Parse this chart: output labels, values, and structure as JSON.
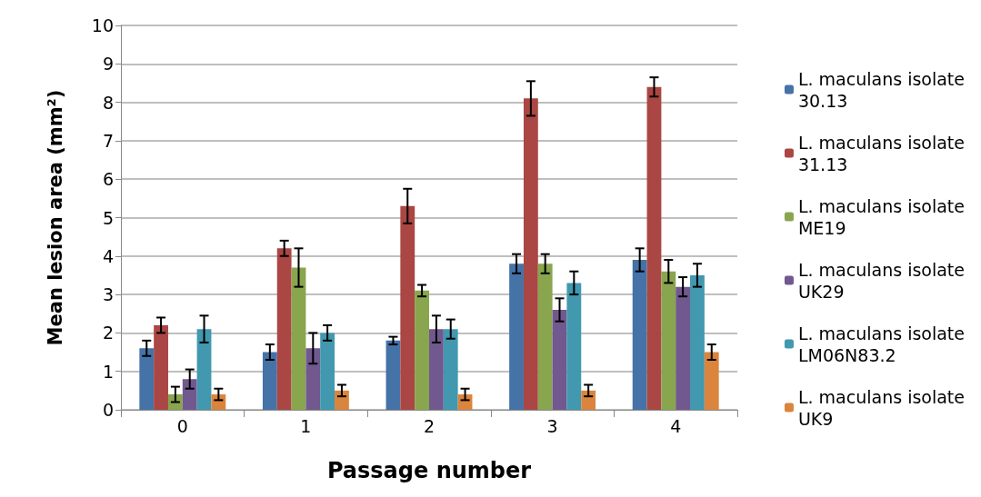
{
  "chart_data": {
    "type": "bar",
    "xlabel": "Passage number",
    "ylabel": "Mean lesion area (mm²)",
    "categories": [
      "0",
      "1",
      "2",
      "3",
      "4"
    ],
    "ylim": [
      0,
      10
    ],
    "yticks": [
      0,
      1,
      2,
      3,
      4,
      5,
      6,
      7,
      8,
      9,
      10
    ],
    "grid": "y",
    "legend": "right",
    "series": [
      {
        "name": "L. maculans isolate 30.13",
        "color": "#4572a7",
        "values": [
          1.6,
          1.5,
          1.8,
          3.8,
          3.9
        ],
        "errors": [
          0.2,
          0.2,
          0.1,
          0.25,
          0.3
        ]
      },
      {
        "name": "L. maculans isolate 31.13",
        "color": "#aa4643",
        "values": [
          2.2,
          4.2,
          5.3,
          8.1,
          8.4
        ],
        "errors": [
          0.2,
          0.2,
          0.45,
          0.45,
          0.25
        ]
      },
      {
        "name": "L. maculans isolate ME19",
        "color": "#89a54e",
        "values": [
          0.4,
          3.7,
          3.1,
          3.8,
          3.6
        ],
        "errors": [
          0.2,
          0.5,
          0.15,
          0.25,
          0.3
        ]
      },
      {
        "name": "L. maculans isolate UK29",
        "color": "#71588f",
        "values": [
          0.8,
          1.6,
          2.1,
          2.6,
          3.2
        ],
        "errors": [
          0.25,
          0.4,
          0.35,
          0.3,
          0.25
        ]
      },
      {
        "name": "L. maculans isolate LM06N83.2",
        "color": "#4198af",
        "values": [
          2.1,
          2.0,
          2.1,
          3.3,
          3.5
        ],
        "errors": [
          0.35,
          0.2,
          0.25,
          0.3,
          0.3
        ]
      },
      {
        "name": "L. maculans isolate UK9",
        "color": "#db843d",
        "values": [
          0.4,
          0.5,
          0.4,
          0.5,
          1.5
        ],
        "errors": [
          0.15,
          0.15,
          0.15,
          0.15,
          0.2
        ]
      }
    ]
  }
}
